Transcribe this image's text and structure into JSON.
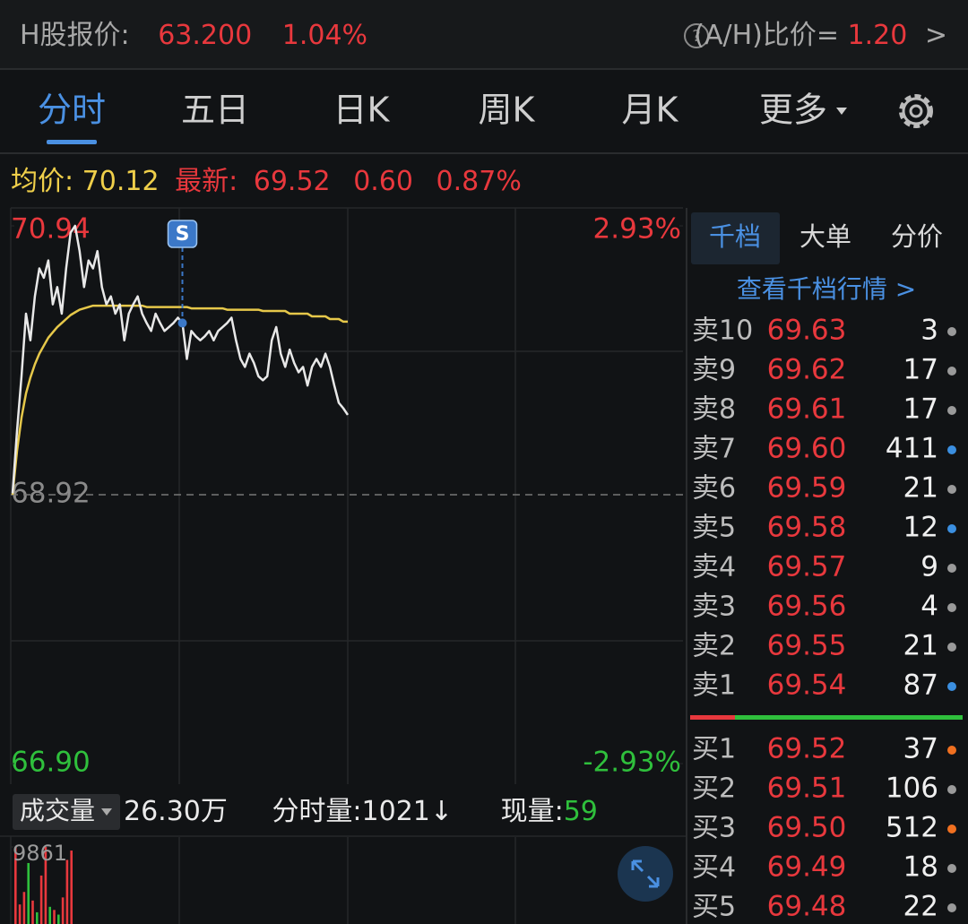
{
  "header": {
    "quote_label": "H股报价:",
    "quote_price": "63.200",
    "quote_change": "1.04%",
    "ah_label": "(A/H)比价=",
    "ah_value": "1.20",
    "ah_arrow": ">"
  },
  "tabs": {
    "items": [
      "分时",
      "五日",
      "日K",
      "周K",
      "月K",
      "更多"
    ],
    "active": 0
  },
  "summary": {
    "avg_label": "均价:",
    "avg": "70.12",
    "latest_label": "最新:",
    "latest": "69.52",
    "change": "0.60",
    "change_pct": "0.87%"
  },
  "chart_data": {
    "type": "line",
    "ylim": [
      66.9,
      70.94
    ],
    "yticks": [
      {
        "value": 70.94,
        "label": "70.94"
      },
      {
        "value": 68.92,
        "label": "68.92"
      },
      {
        "value": 66.9,
        "label": "66.90"
      }
    ],
    "y2lim": [
      -2.93,
      2.93
    ],
    "y2ticks": [
      {
        "value": 2.93,
        "label": "2.93%"
      },
      {
        "value": -2.93,
        "label": "-2.93%"
      }
    ],
    "series": [
      {
        "color": "#e8e8e8",
        "values": [
          68.93,
          69.4,
          69.81,
          70.28,
          70.08,
          70.41,
          70.62,
          70.55,
          70.68,
          70.35,
          70.48,
          70.28,
          70.62,
          70.89,
          70.94,
          70.75,
          70.48,
          70.68,
          70.62,
          70.75,
          70.48,
          70.35,
          70.41,
          70.28,
          70.35,
          70.08,
          70.28,
          70.35,
          70.41,
          70.28,
          70.21,
          70.15,
          70.28,
          70.21,
          70.15,
          70.18,
          70.21,
          70.25,
          70.21,
          69.94,
          70.15,
          70.11,
          70.08,
          70.11,
          70.15,
          70.08,
          70.15,
          70.18,
          70.21,
          70.25,
          70.08,
          69.94,
          69.88,
          69.98,
          69.91,
          69.81,
          69.78,
          69.81,
          70.08,
          70.18,
          69.98,
          69.88,
          70.01,
          69.91,
          69.84,
          69.88,
          69.74,
          69.88,
          69.94,
          69.88,
          69.98,
          69.88,
          69.74,
          69.61,
          69.57,
          69.52
        ]
      },
      {
        "color": "#e6c84a",
        "values": [
          68.92,
          69.25,
          69.5,
          69.68,
          69.8,
          69.9,
          69.98,
          70.04,
          70.1,
          70.14,
          70.18,
          70.21,
          70.24,
          70.27,
          70.29,
          70.31,
          70.32,
          70.33,
          70.34,
          70.34,
          70.34,
          70.34,
          70.34,
          70.34,
          70.34,
          70.34,
          70.34,
          70.34,
          70.34,
          70.34,
          70.33,
          70.33,
          70.33,
          70.33,
          70.33,
          70.33,
          70.33,
          70.33,
          70.33,
          70.33,
          70.32,
          70.32,
          70.32,
          70.32,
          70.32,
          70.32,
          70.32,
          70.32,
          70.31,
          70.31,
          70.31,
          70.31,
          70.31,
          70.31,
          70.31,
          70.31,
          70.3,
          70.3,
          70.3,
          70.3,
          70.3,
          70.3,
          70.28,
          70.28,
          70.28,
          70.28,
          70.28,
          70.26,
          70.26,
          70.26,
          70.26,
          70.24,
          70.24,
          70.24,
          70.22,
          70.22
        ]
      }
    ],
    "marker": {
      "label": "S"
    },
    "volume_ylim": [
      0,
      9861
    ],
    "volume_yticks": [
      9861
    ],
    "volume": [
      9861,
      2500,
      4100,
      7800,
      3000,
      1500,
      6200,
      9861,
      2200,
      1800,
      1200,
      3400,
      8200,
      9400
    ],
    "volume_colors": [
      "#e8383d",
      "#e8383d",
      "#e8383d",
      "#2fc03c",
      "#e8383d",
      "#2fc03c",
      "#e8383d",
      "#e8383d",
      "#2fc03c",
      "#e8383d",
      "#2fc03c",
      "#e8383d",
      "#e8383d",
      "#e8383d"
    ]
  },
  "volume_bar": {
    "label": "成交量",
    "total": "26.30万",
    "minute_label": "分时量:",
    "minute_value": "1021↓",
    "current_label": "现量:",
    "current_value": "59"
  },
  "order_book": {
    "tabs": [
      "千档",
      "大单",
      "分价"
    ],
    "active": 0,
    "link": "查看千档行情 >",
    "asks": [
      {
        "label": "卖10",
        "price": "69.63",
        "qty": "3",
        "dot": "#9a9a9a"
      },
      {
        "label": "卖9",
        "price": "69.62",
        "qty": "17",
        "dot": "#9a9a9a"
      },
      {
        "label": "卖8",
        "price": "69.61",
        "qty": "17",
        "dot": "#9a9a9a"
      },
      {
        "label": "卖7",
        "price": "69.60",
        "qty": "411",
        "dot": "#3b8fe0"
      },
      {
        "label": "卖6",
        "price": "69.59",
        "qty": "21",
        "dot": "#9a9a9a"
      },
      {
        "label": "卖5",
        "price": "69.58",
        "qty": "12",
        "dot": "#3b8fe0"
      },
      {
        "label": "卖4",
        "price": "69.57",
        "qty": "9",
        "dot": "#9a9a9a"
      },
      {
        "label": "卖3",
        "price": "69.56",
        "qty": "4",
        "dot": "#9a9a9a"
      },
      {
        "label": "卖2",
        "price": "69.55",
        "qty": "21",
        "dot": "#9a9a9a"
      },
      {
        "label": "卖1",
        "price": "69.54",
        "qty": "87",
        "dot": "#3b8fe0"
      }
    ],
    "bids": [
      {
        "label": "买1",
        "price": "69.52",
        "qty": "37",
        "dot": "#f07020"
      },
      {
        "label": "买2",
        "price": "69.51",
        "qty": "106",
        "dot": "#9a9a9a"
      },
      {
        "label": "买3",
        "price": "69.50",
        "qty": "512",
        "dot": "#f07020"
      },
      {
        "label": "买4",
        "price": "69.49",
        "qty": "18",
        "dot": "#9a9a9a"
      },
      {
        "label": "买5",
        "price": "69.48",
        "qty": "22",
        "dot": "#9a9a9a"
      }
    ]
  }
}
